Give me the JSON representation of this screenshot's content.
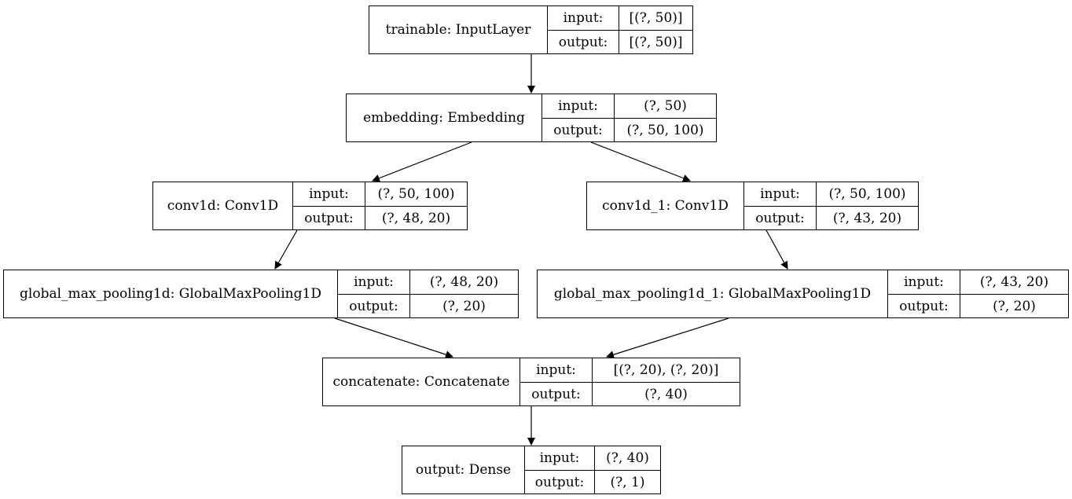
{
  "nodes": [
    {
      "id": "trainable",
      "label": "trainable: InputLayer",
      "input_label": "input:",
      "input": "[(?, 50)]",
      "output_label": "output:",
      "output": "[(?, 50)]"
    },
    {
      "id": "embedding",
      "label": "embedding: Embedding",
      "input_label": "input:",
      "input": "(?, 50)",
      "output_label": "output:",
      "output": "(?, 50, 100)"
    },
    {
      "id": "conv1d",
      "label": "conv1d: Conv1D",
      "input_label": "input:",
      "input": "(?, 50, 100)",
      "output_label": "output:",
      "output": "(?, 48, 20)"
    },
    {
      "id": "conv1d_1",
      "label": "conv1d_1: Conv1D",
      "input_label": "input:",
      "input": "(?, 50, 100)",
      "output_label": "output:",
      "output": "(?, 43, 20)"
    },
    {
      "id": "gmp",
      "label": "global_max_pooling1d: GlobalMaxPooling1D",
      "input_label": "input:",
      "input": "(?, 48, 20)",
      "output_label": "output:",
      "output": "(?, 20)"
    },
    {
      "id": "gmp_1",
      "label": "global_max_pooling1d_1: GlobalMaxPooling1D",
      "input_label": "input:",
      "input": "(?, 43, 20)",
      "output_label": "output:",
      "output": "(?, 20)"
    },
    {
      "id": "concatenate",
      "label": "concatenate: Concatenate",
      "input_label": "input:",
      "input": "[(?, 20), (?, 20)]",
      "output_label": "output:",
      "output": "(?, 40)"
    },
    {
      "id": "output",
      "label": "output: Dense",
      "input_label": "input:",
      "input": "(?, 40)",
      "output_label": "output:",
      "output": "(?, 1)"
    }
  ],
  "edges": [
    {
      "from": "trainable",
      "to": "embedding"
    },
    {
      "from": "embedding",
      "to": "conv1d"
    },
    {
      "from": "embedding",
      "to": "conv1d_1"
    },
    {
      "from": "conv1d",
      "to": "gmp"
    },
    {
      "from": "conv1d_1",
      "to": "gmp_1"
    },
    {
      "from": "gmp",
      "to": "concatenate"
    },
    {
      "from": "gmp_1",
      "to": "concatenate"
    },
    {
      "from": "concatenate",
      "to": "output"
    }
  ]
}
